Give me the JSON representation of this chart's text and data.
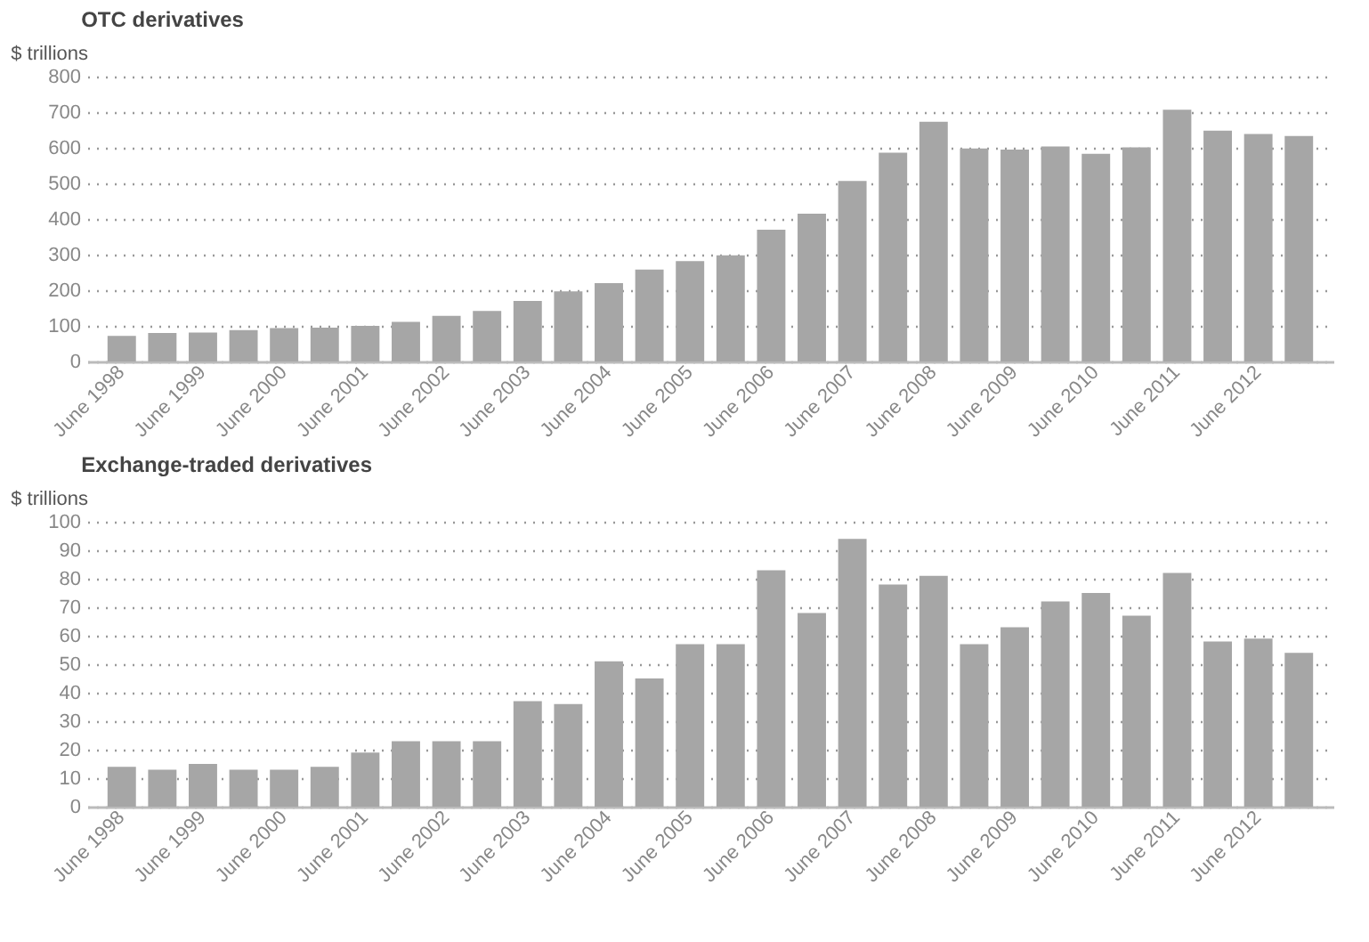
{
  "chart_data": [
    {
      "type": "bar",
      "title": "OTC derivatives",
      "ylabel": "$ trillions",
      "categories": [
        "June 1998",
        null,
        "June 1999",
        null,
        "June 2000",
        null,
        "June 2001",
        null,
        "June 2002",
        null,
        "June 2003",
        null,
        "June 2004",
        null,
        "June 2005",
        null,
        "June 2006",
        null,
        "June 2007",
        null,
        "June 2008",
        null,
        "June 2009",
        null,
        "June 2010",
        null,
        "June 2011",
        null,
        "June 2012",
        null
      ],
      "values": [
        72,
        80,
        81,
        88,
        94,
        95,
        100,
        111,
        128,
        142,
        170,
        197,
        220,
        258,
        282,
        298,
        370,
        415,
        507,
        586,
        673,
        598,
        595,
        604,
        583,
        601,
        707,
        648,
        639,
        633
      ],
      "color": "#a6a6a6",
      "ylim": [
        0,
        800
      ],
      "yticks": [
        0,
        100,
        200,
        300,
        400,
        500,
        600,
        700,
        800
      ],
      "grid": "y"
    },
    {
      "type": "bar",
      "title": "Exchange-traded derivatives",
      "ylabel": "$ trillions",
      "categories": [
        "June 1998",
        null,
        "June 1999",
        null,
        "June 2000",
        null,
        "June 2001",
        null,
        "June 2002",
        null,
        "June 2003",
        null,
        "June 2004",
        null,
        "June 2005",
        null,
        "June 2006",
        null,
        "June 2007",
        null,
        "June 2008",
        null,
        "June 2009",
        null,
        "June 2010",
        null,
        "June 2011",
        null,
        "June 2012",
        null
      ],
      "values": [
        14,
        13,
        15,
        13,
        13,
        14,
        19,
        23,
        23,
        23,
        37,
        36,
        51,
        45,
        57,
        57,
        83,
        68,
        94,
        78,
        81,
        57,
        63,
        72,
        75,
        67,
        82,
        58,
        59,
        54
      ],
      "color": "#a6a6a6",
      "ylim": [
        0,
        100
      ],
      "yticks": [
        0,
        10,
        20,
        30,
        40,
        50,
        60,
        70,
        80,
        90,
        100
      ],
      "grid": "y"
    }
  ]
}
